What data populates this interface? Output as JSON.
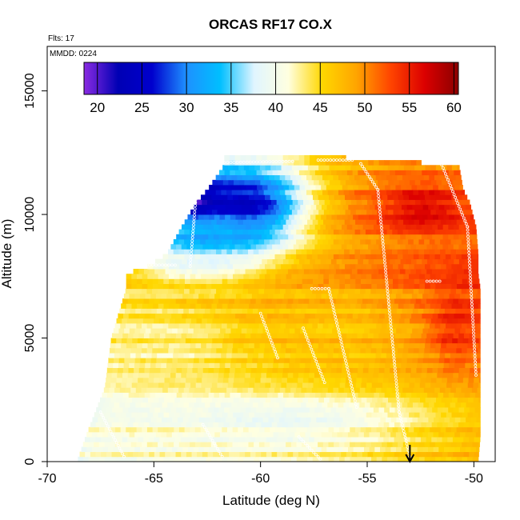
{
  "chart_data": {
    "type": "heatmap",
    "title": "ORCAS RF17 CO.X",
    "annotations": {
      "flights": "Flts: 17",
      "date": "MMDD: 0224"
    },
    "xlabel": "Latitude (deg N)",
    "ylabel": "Altitude (m)",
    "xlim": [
      -70,
      -49
    ],
    "ylim": [
      0,
      16800
    ],
    "x_ticks": [
      -70,
      -65,
      -60,
      -55,
      -50
    ],
    "y_ticks": [
      0,
      5000,
      10000,
      15000
    ],
    "colorbar": {
      "range": [
        18.5,
        60.5
      ],
      "ticks": [
        20,
        25,
        30,
        35,
        40,
        45,
        50,
        55,
        60
      ],
      "colors": [
        "#8A2BE2",
        "#0000B4",
        "#0000CD",
        "#1E90FF",
        "#00BFFF",
        "#E0F5FF",
        "#FFFFE0",
        "#FFD700",
        "#FFA500",
        "#FF4500",
        "#DC0000",
        "#8B0000"
      ]
    },
    "marker": {
      "latitude": -53,
      "symbol": "down-arrow"
    },
    "profile": [
      {
        "alt": 0,
        "lat_min": -68.6,
        "lat_max": -49.8
      },
      {
        "alt": 1000,
        "lat_min": -68.2,
        "lat_max": -49.7
      },
      {
        "alt": 3000,
        "lat_min": -67.3,
        "lat_max": -49.7
      },
      {
        "alt": 5000,
        "lat_min": -67.0,
        "lat_max": -49.7
      },
      {
        "alt": 7000,
        "lat_min": -66.3,
        "lat_max": -49.7
      },
      {
        "alt": 7600,
        "lat_min": -66.3,
        "lat_max": -49.8
      },
      {
        "alt": 7900,
        "lat_min": -65.3,
        "lat_max": -49.8
      },
      {
        "alt": 8400,
        "lat_min": -64.4,
        "lat_max": -49.8
      },
      {
        "alt": 9500,
        "lat_min": -63.7,
        "lat_max": -49.9
      },
      {
        "alt": 10500,
        "lat_min": -63.0,
        "lat_max": -50.2
      },
      {
        "alt": 11000,
        "lat_min": -62.5,
        "lat_max": -50.5
      },
      {
        "alt": 12000,
        "lat_min": -61.7,
        "lat_max": -50.7
      },
      {
        "alt": 12300,
        "lat_min": -61.7,
        "lat_max": -56.0
      }
    ],
    "features": [
      {
        "alt_range": [
          8500,
          12300
        ],
        "lat_range": [
          -64,
          -57.5
        ],
        "value": 24
      },
      {
        "alt_range": [
          9500,
          11500
        ],
        "lat_range": [
          -64,
          -62
        ],
        "value": 20
      },
      {
        "alt_range": [
          8000,
          10000
        ],
        "lat_range": [
          -65,
          -60
        ],
        "value": 32
      },
      {
        "alt_range": [
          7500,
          8500
        ],
        "lat_range": [
          -66,
          -60
        ],
        "value": 38
      },
      {
        "alt_range": [
          9000,
          11500
        ],
        "lat_range": [
          -57,
          -50
        ],
        "value": 52
      },
      {
        "alt_range": [
          9500,
          11000
        ],
        "lat_range": [
          -54,
          -50.5
        ],
        "value": 57
      },
      {
        "alt_range": [
          4000,
          7000
        ],
        "lat_range": [
          -52,
          -49.8
        ],
        "value": 55
      },
      {
        "alt_range": [
          3000,
          7500
        ],
        "lat_range": [
          -60,
          -53
        ],
        "value": 47
      },
      {
        "alt_range": [
          0,
          3000
        ],
        "lat_range": [
          -68,
          -50
        ],
        "value": 40
      },
      {
        "alt_range": [
          3000,
          6000
        ],
        "lat_range": [
          -67,
          -62
        ],
        "value": 43
      }
    ]
  }
}
